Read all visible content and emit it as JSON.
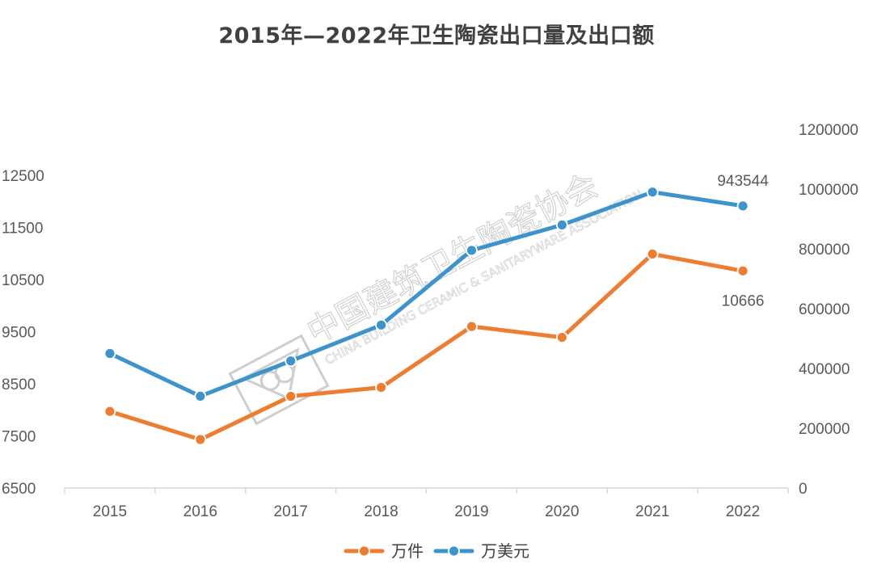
{
  "chart_data": {
    "type": "line",
    "title": "2015年—2022年卫生陶瓷出口量及出口额",
    "categories": [
      "2015",
      "2016",
      "2017",
      "2018",
      "2019",
      "2020",
      "2021",
      "2022"
    ],
    "series": [
      {
        "name": "万件",
        "axis": "left",
        "color": "#ED7D31",
        "values": [
          7970,
          7430,
          8260,
          8430,
          9600,
          9390,
          10990,
          10666
        ]
      },
      {
        "name": "万美元",
        "axis": "right",
        "color": "#3D94CC",
        "values": [
          450000,
          307000,
          425000,
          545000,
          795000,
          880000,
          990000,
          943544
        ]
      }
    ],
    "left_axis": {
      "ticks": [
        6500,
        7500,
        8500,
        9500,
        10500,
        11500,
        12500
      ],
      "ylim": [
        6500,
        12500
      ]
    },
    "right_axis": {
      "ticks": [
        0,
        200000,
        400000,
        600000,
        800000,
        1000000,
        1200000
      ],
      "ylim": [
        0,
        1200000
      ]
    },
    "data_labels": [
      {
        "series": 1,
        "index": 7,
        "text": "943544"
      },
      {
        "series": 0,
        "index": 7,
        "text": "10666"
      }
    ],
    "grid": false,
    "legend": "bottom"
  },
  "watermark": {
    "cn": "中国建筑卫生陶瓷协会",
    "en": "CHINA BUILDING CERAMIC & SANITARYWARE ASSOCIATION"
  }
}
